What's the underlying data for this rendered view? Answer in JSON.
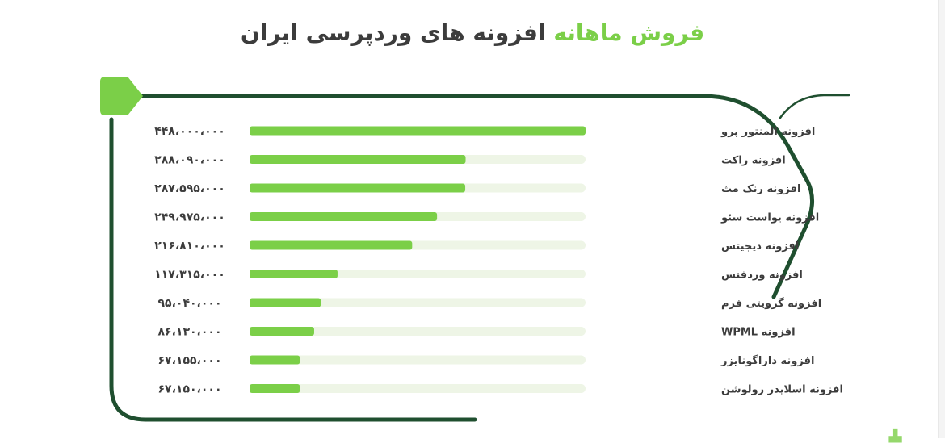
{
  "title": {
    "accent": "فروش ماهانه",
    "rest": "افزونه های وردپرسی ایران"
  },
  "colors": {
    "accent": "#7bcf48",
    "frame": "#1f4f2f",
    "track": "#eef5e6",
    "text": "#3c3c3c"
  },
  "chart_data": {
    "type": "bar",
    "orientation": "horizontal",
    "title": "فروش ماهانه افزونه های وردپرسی ایران",
    "categories": [
      "افزونه المنتور پرو",
      "افزونه راکت",
      "افزونه رنک مث",
      "افزونه یواست سئو",
      "افزونه دیجیتس",
      "افزونه وردفنس",
      "افزونه گرویتی فرم",
      "افزونه WPML",
      "افزونه داراگونایزر",
      "افزونه اسلایدر رولوشن"
    ],
    "values": [
      448000000,
      288090000,
      287595000,
      249975000,
      216810000,
      117315000,
      95040000,
      86130000,
      67155000,
      67150000
    ],
    "value_labels": [
      "۴۴۸،۰۰۰،۰۰۰",
      "۲۸۸،۰۹۰،۰۰۰",
      "۲۸۷،۵۹۵،۰۰۰",
      "۲۴۹،۹۷۵،۰۰۰",
      "۲۱۶،۸۱۰،۰۰۰",
      "۱۱۷،۳۱۵،۰۰۰",
      "۹۵،۰۴۰،۰۰۰",
      "۸۶،۱۳۰،۰۰۰",
      "۶۷،۱۵۵،۰۰۰",
      "۶۷،۱۵۰،۰۰۰"
    ],
    "xlim": [
      0,
      448000000
    ],
    "xlabel": "",
    "ylabel": "",
    "grid": false,
    "legend": "none"
  }
}
